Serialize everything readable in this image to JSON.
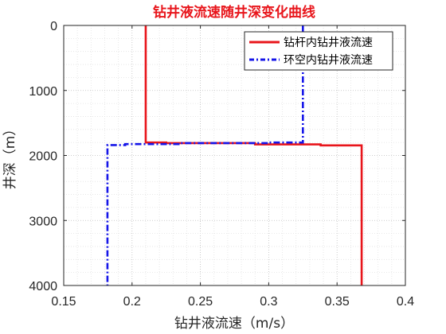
{
  "chart_data": {
    "type": "line",
    "title": "钻井液流速随井深变化曲线",
    "title_color": "#e8151b",
    "xlabel": "钻井液流速（m/s）",
    "ylabel": "井深（m）",
    "xlim": [
      0.15,
      0.4
    ],
    "ylim": [
      0,
      4000
    ],
    "y_reversed": true,
    "grid": "dotted",
    "legend_position": "top-right",
    "xticks": [
      "0.15",
      "0.2",
      "0.25",
      "0.3",
      "0.35",
      "0.4"
    ],
    "yticks": [
      "0",
      "1000",
      "2000",
      "3000",
      "4000"
    ],
    "series": [
      {
        "name": "钻杆内钻井液流速",
        "color": "#e8151b",
        "style": "solid",
        "points": [
          [
            0.21,
            0
          ],
          [
            0.21,
            1800
          ],
          [
            0.225,
            1800
          ],
          [
            0.225,
            1810
          ],
          [
            0.29,
            1810
          ],
          [
            0.29,
            1830
          ],
          [
            0.338,
            1830
          ],
          [
            0.338,
            1845
          ],
          [
            0.368,
            1845
          ],
          [
            0.368,
            4000
          ]
        ]
      },
      {
        "name": "环空内钻井液流速",
        "color": "#1515e8",
        "style": "dashdot",
        "points": [
          [
            0.325,
            0
          ],
          [
            0.325,
            1800
          ],
          [
            0.3,
            1800
          ],
          [
            0.3,
            1810
          ],
          [
            0.235,
            1810
          ],
          [
            0.235,
            1825
          ],
          [
            0.195,
            1825
          ],
          [
            0.195,
            1840
          ],
          [
            0.182,
            1840
          ],
          [
            0.182,
            4000
          ]
        ]
      }
    ]
  }
}
